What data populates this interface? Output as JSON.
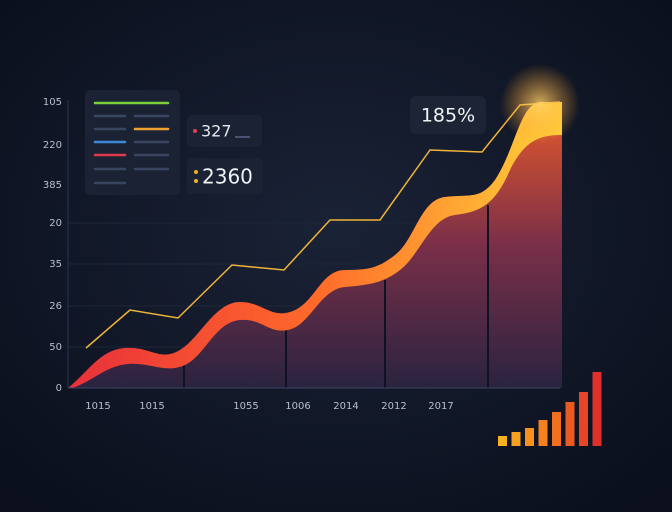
{
  "y_axis_labels": [
    "105",
    "220",
    "385",
    "20",
    "35",
    "26",
    "50",
    "0"
  ],
  "x_axis_labels": [
    "1015",
    "1015",
    "1055",
    "1006",
    "2014",
    "2012",
    "2017"
  ],
  "cards": [
    "327",
    "2360"
  ],
  "badge": "185%"
}
